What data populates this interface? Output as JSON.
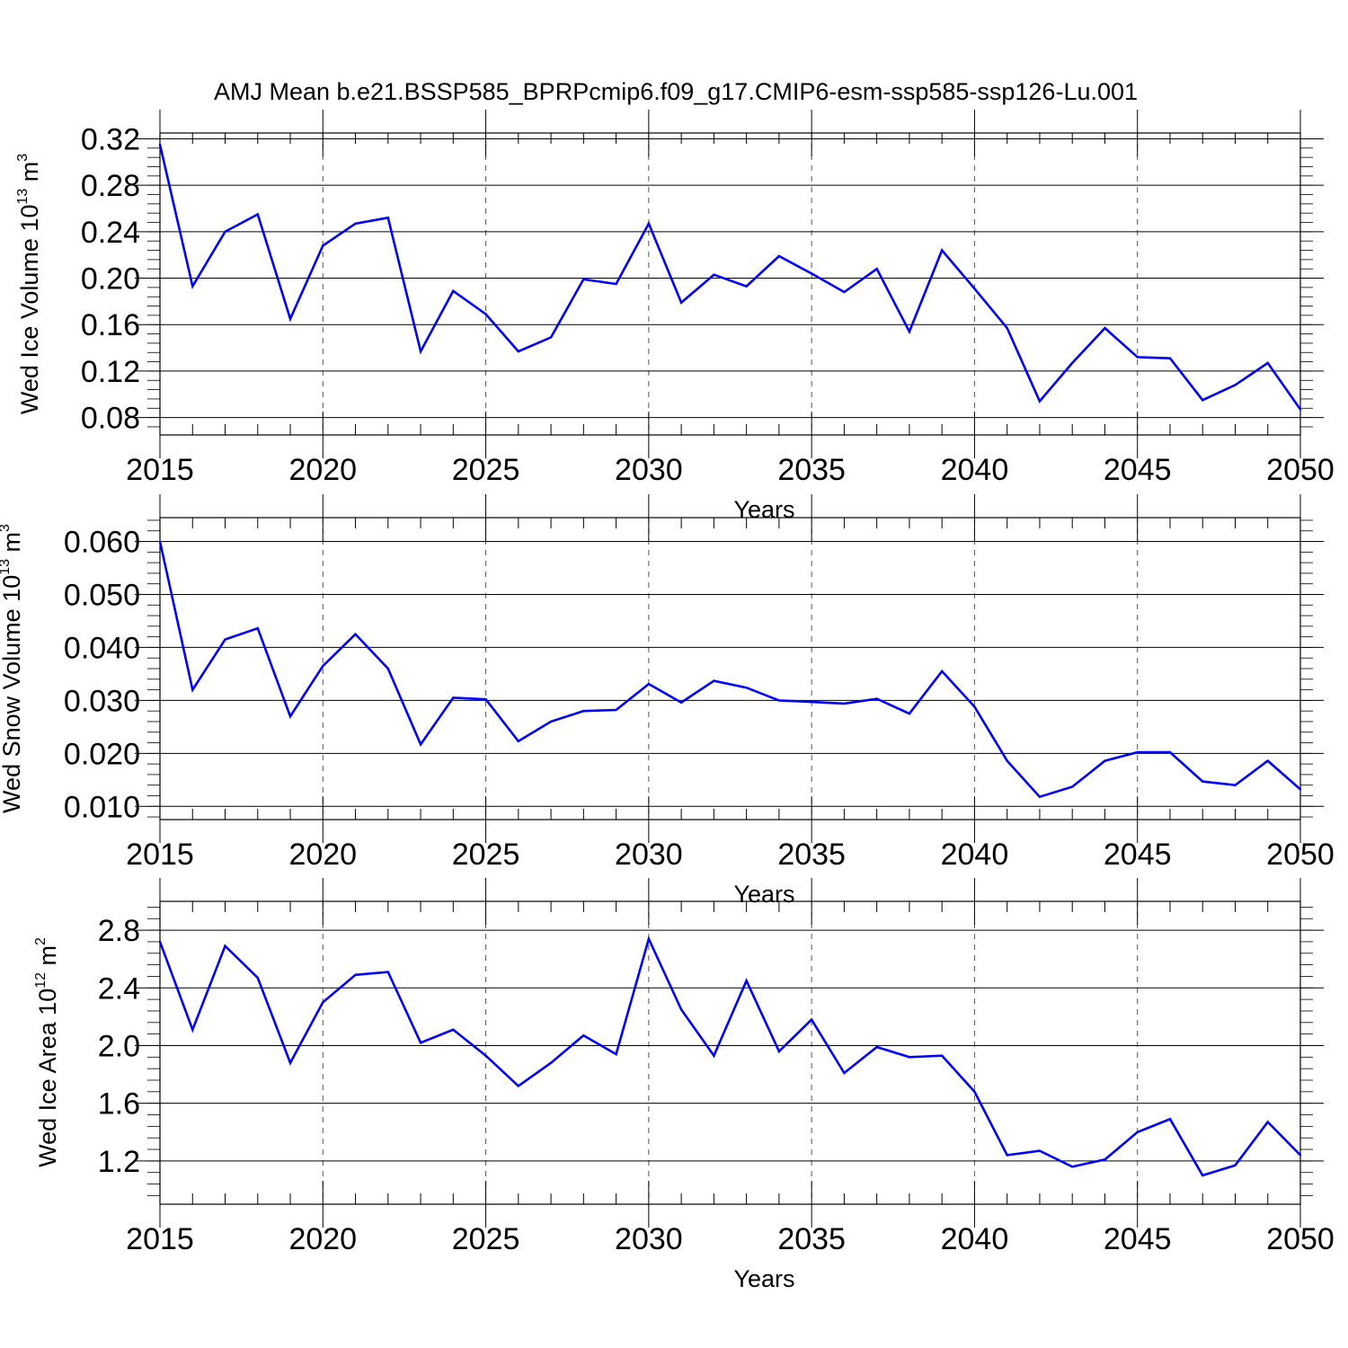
{
  "figure_title": "AMJ Mean b.e21.BSSP585_BPRPcmip6.f09_g17.CMIP6-esm-ssp585-ssp126-Lu.001",
  "line_color": "#0000ff",
  "chart_data": [
    {
      "type": "line",
      "xlabel": "Years",
      "ylabel_main": "Wed Ice Volume 10",
      "ylabel_exp": "13",
      "ylabel_unit": " m",
      "ylabel_unit_exp": "3",
      "xlim": [
        2015,
        2050
      ],
      "ylim": [
        0.065,
        0.325
      ],
      "x_ticks": [
        2015,
        2020,
        2025,
        2030,
        2035,
        2040,
        2045,
        2050
      ],
      "x_tick_labels": [
        "2015",
        "2020",
        "2025",
        "2030",
        "2035",
        "2040",
        "2045",
        "2050"
      ],
      "y_ticks": [
        0.08,
        0.12,
        0.16,
        0.2,
        0.24,
        0.28,
        0.32
      ],
      "y_tick_labels": [
        "0.08",
        "0.12",
        "0.16",
        "0.20",
        "0.24",
        "0.28",
        "0.32"
      ],
      "y_minor_step": 0.008,
      "x": [
        2015,
        2016,
        2017,
        2018,
        2019,
        2020,
        2021,
        2022,
        2023,
        2024,
        2025,
        2026,
        2027,
        2028,
        2029,
        2030,
        2031,
        2032,
        2033,
        2034,
        2035,
        2036,
        2037,
        2038,
        2039,
        2040,
        2041,
        2042,
        2043,
        2044,
        2045,
        2046,
        2047,
        2048,
        2049,
        2050
      ],
      "values": [
        0.315,
        0.193,
        0.24,
        0.255,
        0.165,
        0.228,
        0.247,
        0.252,
        0.137,
        0.189,
        0.169,
        0.137,
        0.149,
        0.199,
        0.195,
        0.247,
        0.179,
        0.203,
        0.193,
        0.219,
        0.204,
        0.188,
        0.208,
        0.154,
        0.224,
        0.191,
        0.157,
        0.094,
        0.127,
        0.157,
        0.132,
        0.131,
        0.095,
        0.108,
        0.127,
        0.087
      ]
    },
    {
      "type": "line",
      "xlabel": "Years",
      "ylabel_main": "Wed Snow Volume 10",
      "ylabel_exp": "13",
      "ylabel_unit": " m",
      "ylabel_unit_exp": "3",
      "xlim": [
        2015,
        2050
      ],
      "ylim": [
        0.0075,
        0.0645
      ],
      "x_ticks": [
        2015,
        2020,
        2025,
        2030,
        2035,
        2040,
        2045,
        2050
      ],
      "x_tick_labels": [
        "2015",
        "2020",
        "2025",
        "2030",
        "2035",
        "2040",
        "2045",
        "2050"
      ],
      "y_ticks": [
        0.01,
        0.02,
        0.03,
        0.04,
        0.05,
        0.06
      ],
      "y_tick_labels": [
        "0.010",
        "0.020",
        "0.030",
        "0.040",
        "0.050",
        "0.060"
      ],
      "y_minor_step": 0.002,
      "x": [
        2015,
        2016,
        2017,
        2018,
        2019,
        2020,
        2021,
        2022,
        2023,
        2024,
        2025,
        2026,
        2027,
        2028,
        2029,
        2030,
        2031,
        2032,
        2033,
        2034,
        2035,
        2036,
        2037,
        2038,
        2039,
        2040,
        2041,
        2042,
        2043,
        2044,
        2045,
        2046,
        2047,
        2048,
        2049,
        2050
      ],
      "values": [
        0.06,
        0.032,
        0.0415,
        0.0436,
        0.027,
        0.0365,
        0.0425,
        0.036,
        0.0217,
        0.0305,
        0.0302,
        0.0223,
        0.026,
        0.028,
        0.0282,
        0.0331,
        0.0296,
        0.0337,
        0.0324,
        0.03,
        0.0297,
        0.0294,
        0.0303,
        0.0275,
        0.0355,
        0.0288,
        0.0186,
        0.0118,
        0.0137,
        0.0186,
        0.0202,
        0.0202,
        0.0147,
        0.014,
        0.0186,
        0.0132
      ]
    },
    {
      "type": "line",
      "xlabel": "Years",
      "ylabel_main": "Wed Ice Area 10",
      "ylabel_exp": "12",
      "ylabel_unit": " m",
      "ylabel_unit_exp": "2",
      "xlim": [
        2015,
        2050
      ],
      "ylim": [
        0.9,
        3.0
      ],
      "x_ticks": [
        2015,
        2020,
        2025,
        2030,
        2035,
        2040,
        2045,
        2050
      ],
      "x_tick_labels": [
        "2015",
        "2020",
        "2025",
        "2030",
        "2035",
        "2040",
        "2045",
        "2050"
      ],
      "y_ticks": [
        1.2,
        1.6,
        2.0,
        2.4,
        2.8
      ],
      "y_tick_labels": [
        "1.2",
        "1.6",
        "2.0",
        "2.4",
        "2.8"
      ],
      "y_minor_step": 0.08,
      "x": [
        2015,
        2016,
        2017,
        2018,
        2019,
        2020,
        2021,
        2022,
        2023,
        2024,
        2025,
        2026,
        2027,
        2028,
        2029,
        2030,
        2031,
        2032,
        2033,
        2034,
        2035,
        2036,
        2037,
        2038,
        2039,
        2040,
        2041,
        2042,
        2043,
        2044,
        2045,
        2046,
        2047,
        2048,
        2049,
        2050
      ],
      "values": [
        2.72,
        2.11,
        2.69,
        2.47,
        1.88,
        2.3,
        2.49,
        2.51,
        2.02,
        2.11,
        1.93,
        1.72,
        1.88,
        2.07,
        1.94,
        2.74,
        2.25,
        1.93,
        2.45,
        1.96,
        2.18,
        1.81,
        1.99,
        1.92,
        1.93,
        1.68,
        1.24,
        1.27,
        1.16,
        1.21,
        1.4,
        1.49,
        1.1,
        1.17,
        1.47,
        1.24
      ]
    }
  ]
}
